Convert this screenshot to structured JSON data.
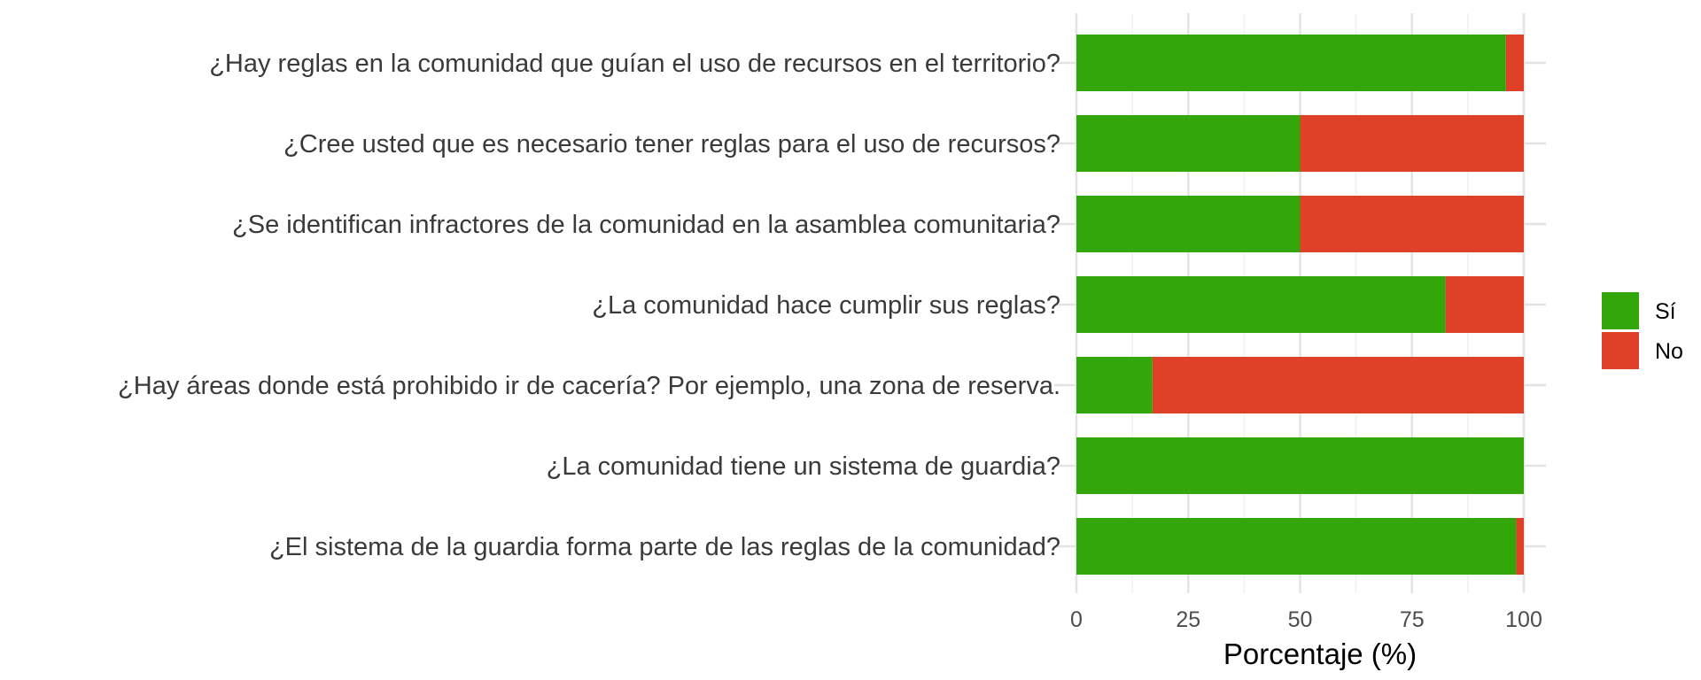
{
  "chart_data": {
    "type": "bar",
    "orientation": "horizontal",
    "stacked": true,
    "categories": [
      "¿Hay reglas en la comunidad que guían el uso de recursos en el territorio?",
      "¿Cree usted que es necesario tener reglas para el uso de recursos?",
      "¿Se identifican infractores de la comunidad en la asamblea comunitaria?",
      "¿La comunidad hace cumplir sus reglas?",
      "¿Hay áreas donde está prohibido ir de cacería? Por ejemplo, una zona de reserva.",
      "¿La comunidad tiene un sistema de guardia?",
      "¿El sistema de la guardia forma parte de las reglas de la comunidad?"
    ],
    "series": [
      {
        "name": "Sí",
        "color": "#33a70a",
        "values": [
          96,
          50,
          50,
          82.5,
          17,
          100,
          98.3
        ]
      },
      {
        "name": "No",
        "color": "#de4127",
        "values": [
          4,
          50,
          50,
          17.5,
          83,
          0,
          1.7
        ]
      }
    ],
    "xlabel": "Porcentaje (%)",
    "ylabel": "",
    "xlim": [
      0,
      100
    ],
    "xticks": [
      0,
      25,
      50,
      75,
      100
    ],
    "grid": true,
    "legend": "right"
  }
}
